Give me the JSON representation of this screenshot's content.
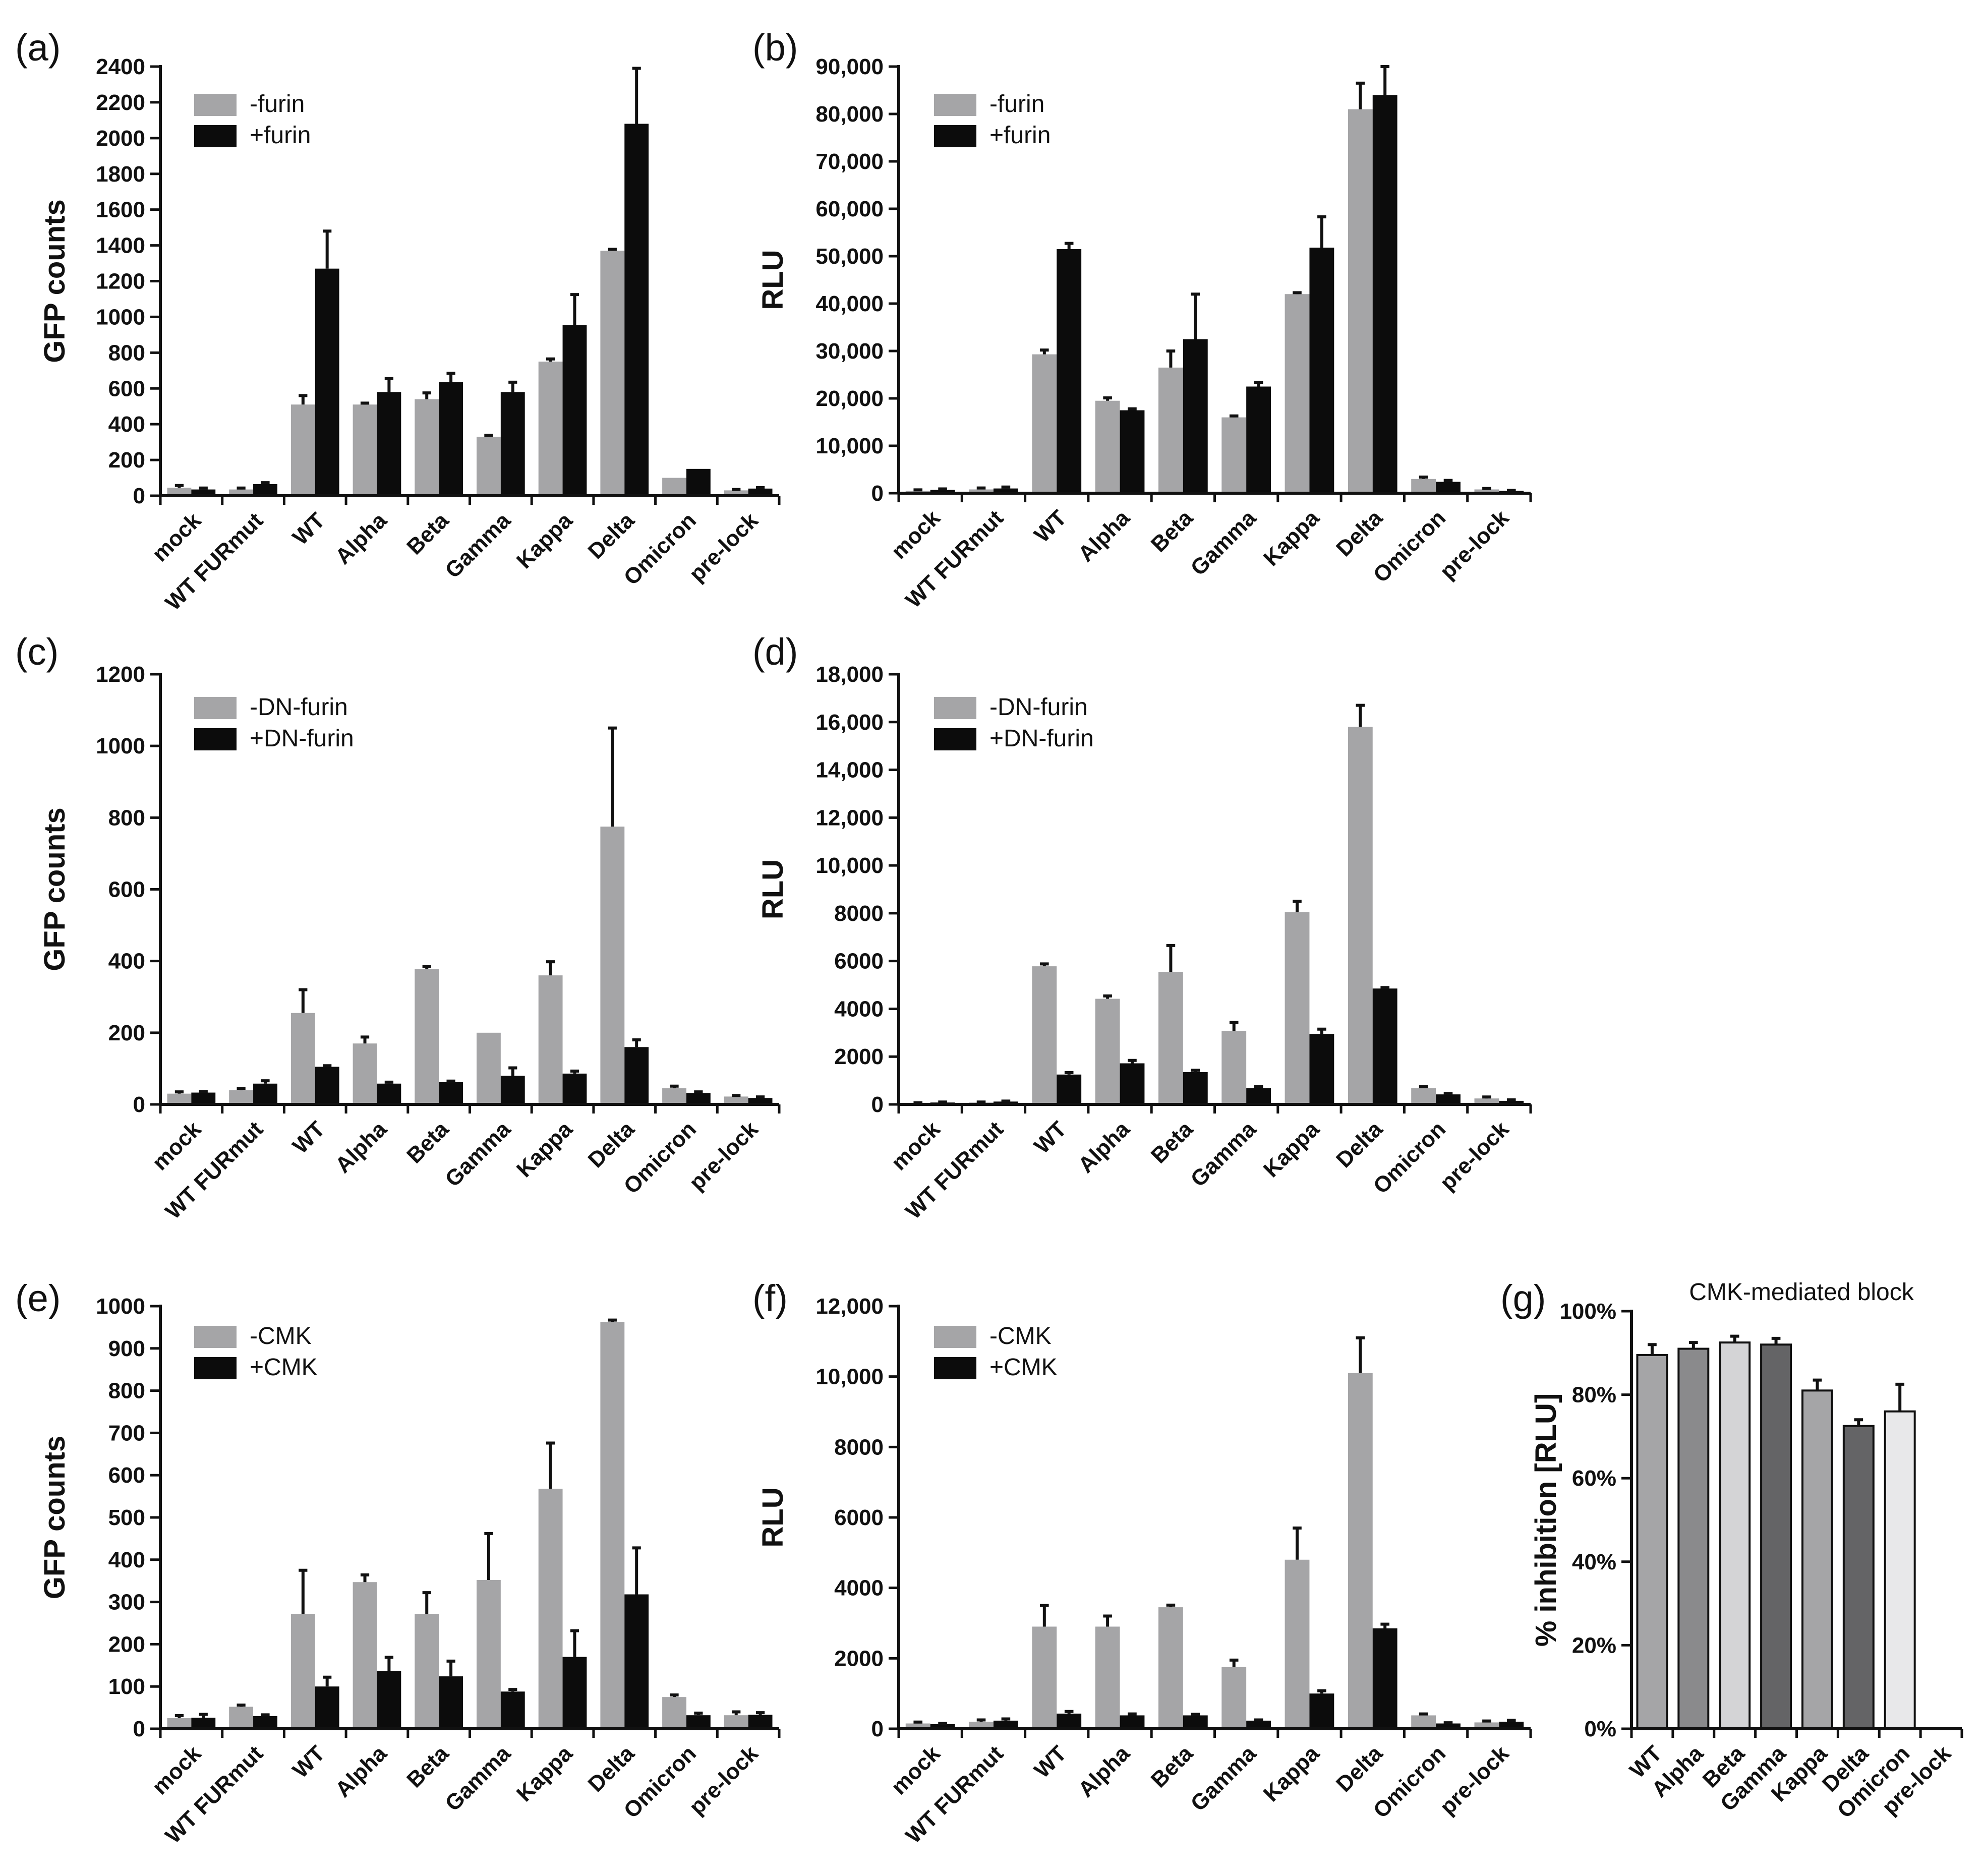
{
  "colors": {
    "minus": "#a5a5a7",
    "plus": "#0c0c0c"
  },
  "chart_data": [
    {
      "type": "bar",
      "panel": "(a)",
      "ylabel": "GFP counts",
      "ylim": [
        0,
        2400
      ],
      "ystep": 200,
      "tick_format": "plain",
      "categories": [
        "mock",
        "WT FURmut",
        "WT",
        "Alpha",
        "Beta",
        "Gamma",
        "Kappa",
        "Delta",
        "Omicron",
        "pre-lock"
      ],
      "legend": [
        "-furin",
        "+furin"
      ],
      "series": [
        {
          "name": "-furin",
          "values": [
            45,
            35,
            510,
            510,
            540,
            330,
            750,
            1370,
            100,
            30
          ],
          "errors": [
            12,
            8,
            50,
            8,
            35,
            8,
            15,
            8,
            0,
            5
          ]
        },
        {
          "name": "+furin",
          "values": [
            35,
            65,
            1270,
            580,
            635,
            580,
            955,
            2080,
            150,
            40
          ],
          "errors": [
            8,
            8,
            210,
            75,
            50,
            55,
            170,
            310,
            0,
            5
          ]
        }
      ]
    },
    {
      "type": "bar",
      "panel": "(b)",
      "ylabel": "RLU",
      "ylim": [
        0,
        90000
      ],
      "ystep": 10000,
      "tick_format": "comma",
      "categories": [
        "mock",
        "WT FURmut",
        "WT",
        "Alpha",
        "Beta",
        "Gamma",
        "Kappa",
        "Delta",
        "Omicron",
        "pre-lock"
      ],
      "legend": [
        "-furin",
        "+furin"
      ],
      "series": [
        {
          "name": "-furin",
          "values": [
            500,
            800,
            29300,
            19500,
            26500,
            16000,
            42000,
            81000,
            3000,
            800
          ],
          "errors": [
            200,
            300,
            900,
            600,
            3500,
            300,
            300,
            5500,
            400,
            200
          ]
        },
        {
          "name": "+furin",
          "values": [
            700,
            1000,
            51500,
            17500,
            32500,
            22500,
            51800,
            84000,
            2400,
            500
          ],
          "errors": [
            200,
            300,
            1200,
            300,
            9500,
            900,
            6500,
            6000,
            300,
            100
          ]
        }
      ]
    },
    {
      "type": "bar",
      "panel": "(c)",
      "ylabel": "GFP counts",
      "ylim": [
        0,
        1200
      ],
      "ystep": 200,
      "tick_format": "plain",
      "categories": [
        "mock",
        "WT FURmut",
        "WT",
        "Alpha",
        "Beta",
        "Gamma",
        "Kappa",
        "Delta",
        "Omicron",
        "pre-lock"
      ],
      "legend": [
        "-DN-furin",
        "+DN-furin"
      ],
      "series": [
        {
          "name": "-DN-furin",
          "values": [
            30,
            40,
            255,
            170,
            378,
            200,
            360,
            775,
            45,
            22
          ],
          "errors": [
            5,
            5,
            65,
            18,
            6,
            0,
            38,
            275,
            6,
            3
          ]
        },
        {
          "name": "+DN-furin",
          "values": [
            33,
            58,
            105,
            58,
            62,
            80,
            86,
            160,
            32,
            18
          ],
          "errors": [
            3,
            8,
            3,
            4,
            3,
            22,
            7,
            20,
            3,
            3
          ]
        }
      ]
    },
    {
      "type": "bar",
      "panel": "(d)",
      "ylabel": "RLU",
      "ylim": [
        0,
        18000
      ],
      "ystep": 2000,
      "tick_format": "comma4",
      "categories": [
        "mock",
        "WT FURmut",
        "WT",
        "Alpha",
        "Beta",
        "Gamma",
        "Kappa",
        "Delta",
        "Omicron",
        "pre-lock"
      ],
      "legend": [
        "-DN-furin",
        "+DN-furin"
      ],
      "series": [
        {
          "name": "-DN-furin",
          "values": [
            50,
            80,
            5780,
            4420,
            5550,
            3080,
            8050,
            15800,
            680,
            250
          ],
          "errors": [
            20,
            20,
            100,
            120,
            1100,
            350,
            450,
            900,
            60,
            60
          ]
        },
        {
          "name": "+DN-furin",
          "values": [
            80,
            120,
            1250,
            1720,
            1350,
            680,
            2950,
            4850,
            420,
            150
          ],
          "errors": [
            20,
            20,
            80,
            120,
            80,
            60,
            200,
            40,
            40,
            40
          ]
        }
      ]
    },
    {
      "type": "bar",
      "panel": "(e)",
      "ylabel": "GFP counts",
      "ylim": [
        0,
        1000
      ],
      "ystep": 100,
      "tick_format": "plain",
      "categories": [
        "mock",
        "WT FURmut",
        "WT",
        "Alpha",
        "Beta",
        "Gamma",
        "Kappa",
        "Delta",
        "Omicron",
        "pre-lock"
      ],
      "legend": [
        "-CMK",
        "+CMK"
      ],
      "series": [
        {
          "name": "-CMK",
          "values": [
            25,
            52,
            272,
            347,
            272,
            352,
            568,
            963,
            75,
            32
          ],
          "errors": [
            6,
            4,
            103,
            17,
            50,
            110,
            108,
            4,
            5,
            8
          ]
        },
        {
          "name": "+CMK",
          "values": [
            26,
            30,
            100,
            137,
            124,
            88,
            170,
            318,
            32,
            33
          ],
          "errors": [
            8,
            3,
            22,
            32,
            36,
            5,
            62,
            110,
            5,
            5
          ]
        }
      ]
    },
    {
      "type": "bar",
      "panel": "(f)",
      "ylabel": "RLU",
      "ylim": [
        0,
        12000
      ],
      "ystep": 2000,
      "tick_format": "comma5",
      "categories": [
        "mock",
        "WT FURmut",
        "WT",
        "Alpha",
        "Beta",
        "Gamma",
        "Kappa",
        "Delta",
        "Omicron",
        "pre-lock"
      ],
      "legend": [
        "-CMK",
        "+CMK"
      ],
      "series": [
        {
          "name": "-CMK",
          "values": [
            150,
            200,
            2900,
            2900,
            3450,
            1750,
            4800,
            10100,
            380,
            180
          ],
          "errors": [
            40,
            50,
            600,
            300,
            60,
            200,
            900,
            1000,
            40,
            40
          ]
        },
        {
          "name": "+CMK",
          "values": [
            130,
            230,
            430,
            380,
            380,
            230,
            1000,
            2850,
            150,
            200
          ],
          "errors": [
            20,
            50,
            60,
            40,
            30,
            20,
            80,
            120,
            20,
            40
          ]
        }
      ]
    },
    {
      "type": "bar",
      "panel": "(g)",
      "title": "CMK-mediated block",
      "ylabel": "% inhibition [RLU]",
      "ylim": [
        0,
        100
      ],
      "ystep": 20,
      "tick_format": "percent",
      "categories": [
        "WT",
        "Alpha",
        "Beta",
        "Gamma",
        "Kappa",
        "Delta",
        "Omicron",
        "pre-lock"
      ],
      "values": [
        89.5,
        91,
        92.5,
        92,
        81,
        72.5,
        76,
        0
      ],
      "errors": [
        2.5,
        1.5,
        1.5,
        1.5,
        2.5,
        1.5,
        6.5,
        0
      ],
      "bar_colors": [
        "#a5a5a7",
        "#8a8a8c",
        "#d4d4d6",
        "#646466",
        "#a5a5a7",
        "#646466",
        "#e8e8ea",
        "#ffffff"
      ]
    }
  ]
}
